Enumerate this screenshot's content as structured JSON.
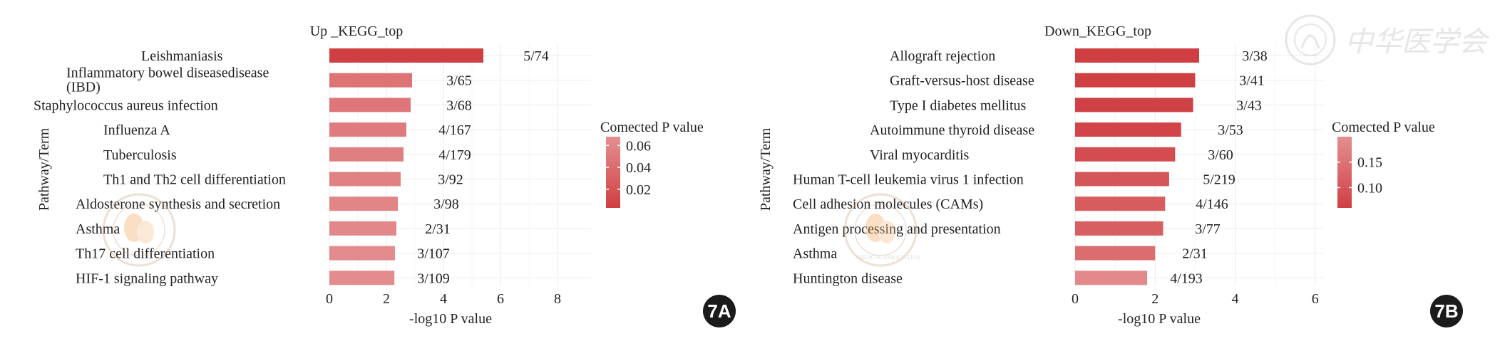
{
  "chart_data": [
    {
      "type": "bar",
      "orientation": "horizontal",
      "title": "Up _KEGG_top",
      "xlabel": "-log10 P value",
      "ylabel": "Pathway/Term",
      "xlim": [
        0,
        9.2
      ],
      "xticks": [
        0,
        2,
        4,
        6,
        8
      ],
      "categories": [
        "Leishmaniasis",
        "Inflammatory bowel diseasedisease (IBD)",
        "Staphylococcus aureus infection",
        "Influenza A",
        "Tuberculosis",
        "Th1 and Th2 cell differentiation",
        "Aldosterone synthesis and secretion",
        "Asthma",
        "Th17 cell differentiation",
        "HIF-1 signaling pathway"
      ],
      "category_lines": [
        [
          "Leishmaniasis"
        ],
        [
          "Inflammatory bowel diseasedisease",
          "(IBD)"
        ],
        [
          "Staphylococcus aureus infection"
        ],
        [
          "Influenza A"
        ],
        [
          "Tuberculosis"
        ],
        [
          "Th1 and Th2 cell differentiation"
        ],
        [
          "Aldosterone synthesis and secretion"
        ],
        [
          "Asthma"
        ],
        [
          "Th17 cell differentiation"
        ],
        [
          "HIF-1 signaling pathway"
        ]
      ],
      "values": [
        5.4,
        2.9,
        2.85,
        2.7,
        2.6,
        2.5,
        2.4,
        2.35,
        2.3,
        2.28
      ],
      "labels": [
        "5/74",
        "3/65",
        "3/68",
        "4/167",
        "4/179",
        "3/92",
        "3/98",
        "2/31",
        "3/107",
        "3/109"
      ],
      "corrected_p": [
        0.003,
        0.045,
        0.048,
        0.052,
        0.055,
        0.057,
        0.06,
        0.062,
        0.064,
        0.065
      ],
      "legend": {
        "title": "Comected P value",
        "ticks": [
          "0.06",
          "0.04",
          "0.02"
        ],
        "tick_values": [
          0.06,
          0.04,
          0.02
        ],
        "range": [
          0.003,
          0.068
        ]
      },
      "panel_label": "7A"
    },
    {
      "type": "bar",
      "orientation": "horizontal",
      "title": "Down_KEGG_top",
      "xlabel": "-log10 P value",
      "ylabel": "Pathway/Term",
      "xlim": [
        0,
        6.2
      ],
      "xticks": [
        0,
        2,
        4,
        6
      ],
      "categories": [
        "Allograft rejection",
        "Graft-versus-host disease",
        "Type I diabetes mellitus",
        "Autoimmune thyroid disease",
        "Viral myocarditis",
        "Human T-cell leukemia virus 1 infection",
        "Cell adhesion molecules (CAMs)",
        "Antigen processing and presentation",
        "Asthma",
        "Huntington disease"
      ],
      "category_lines": [
        [
          "Allograft rejection"
        ],
        [
          "Graft-versus-host disease"
        ],
        [
          "Type I diabetes mellitus"
        ],
        [
          "Autoimmune thyroid disease"
        ],
        [
          "Viral myocarditis"
        ],
        [
          "Human T-cell leukemia virus 1 infection"
        ],
        [
          "Cell adhesion molecules (CAMs)"
        ],
        [
          "Antigen processing and presentation"
        ],
        [
          "Asthma"
        ],
        [
          "Huntington disease"
        ]
      ],
      "values": [
        3.1,
        3.0,
        2.95,
        2.65,
        2.5,
        2.35,
        2.25,
        2.2,
        2.0,
        1.8
      ],
      "labels": [
        "3/38",
        "3/41",
        "3/43",
        "3/53",
        "3/60",
        "5/219",
        "4/146",
        "3/77",
        "2/31",
        "4/193"
      ],
      "corrected_p": [
        0.06,
        0.062,
        0.063,
        0.07,
        0.085,
        0.1,
        0.11,
        0.115,
        0.14,
        0.19
      ],
      "legend": {
        "title": "Comected P value",
        "ticks": [
          "0.15",
          "0.10"
        ],
        "tick_values": [
          0.15,
          0.1
        ],
        "range": [
          0.06,
          0.2
        ]
      },
      "panel_label": "7B"
    }
  ],
  "colors": {
    "low": "#cf3f42",
    "high": "#e48f91",
    "grid": "#ebebeb",
    "text": "#222222"
  },
  "watermark": {
    "text": "中华医学会",
    "seal_caption": "MEDICAL ASSOCIATION"
  }
}
